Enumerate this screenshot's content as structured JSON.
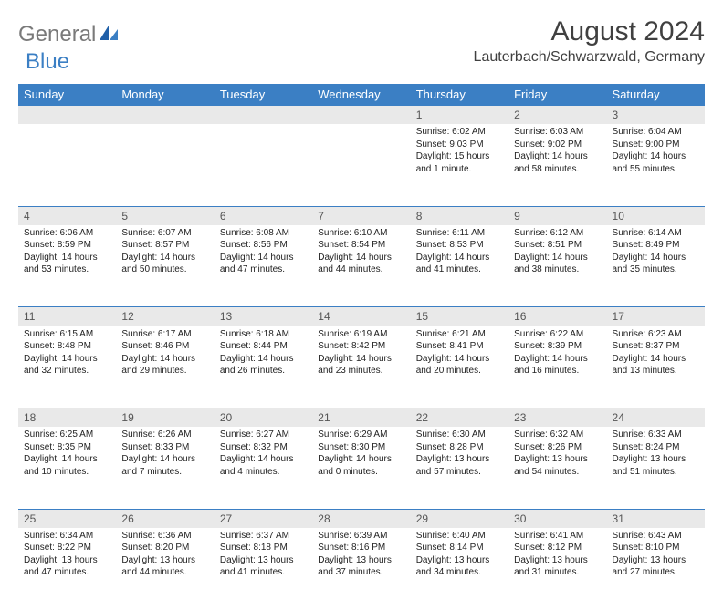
{
  "logo": {
    "gray": "General",
    "blue": "Blue"
  },
  "title": "August 2024",
  "location": "Lauterbach/Schwarzwald, Germany",
  "colors": {
    "header_bg": "#3b7fc4",
    "header_text": "#ffffff",
    "daynum_bg": "#e9e9e9",
    "border": "#3b7fc4",
    "logo_gray": "#7a7a7a",
    "logo_blue": "#3b7fc4"
  },
  "day_headers": [
    "Sunday",
    "Monday",
    "Tuesday",
    "Wednesday",
    "Thursday",
    "Friday",
    "Saturday"
  ],
  "weeks": [
    [
      null,
      null,
      null,
      null,
      {
        "n": "1",
        "sr": "Sunrise: 6:02 AM",
        "ss": "Sunset: 9:03 PM",
        "dl": "Daylight: 15 hours and 1 minute."
      },
      {
        "n": "2",
        "sr": "Sunrise: 6:03 AM",
        "ss": "Sunset: 9:02 PM",
        "dl": "Daylight: 14 hours and 58 minutes."
      },
      {
        "n": "3",
        "sr": "Sunrise: 6:04 AM",
        "ss": "Sunset: 9:00 PM",
        "dl": "Daylight: 14 hours and 55 minutes."
      }
    ],
    [
      {
        "n": "4",
        "sr": "Sunrise: 6:06 AM",
        "ss": "Sunset: 8:59 PM",
        "dl": "Daylight: 14 hours and 53 minutes."
      },
      {
        "n": "5",
        "sr": "Sunrise: 6:07 AM",
        "ss": "Sunset: 8:57 PM",
        "dl": "Daylight: 14 hours and 50 minutes."
      },
      {
        "n": "6",
        "sr": "Sunrise: 6:08 AM",
        "ss": "Sunset: 8:56 PM",
        "dl": "Daylight: 14 hours and 47 minutes."
      },
      {
        "n": "7",
        "sr": "Sunrise: 6:10 AM",
        "ss": "Sunset: 8:54 PM",
        "dl": "Daylight: 14 hours and 44 minutes."
      },
      {
        "n": "8",
        "sr": "Sunrise: 6:11 AM",
        "ss": "Sunset: 8:53 PM",
        "dl": "Daylight: 14 hours and 41 minutes."
      },
      {
        "n": "9",
        "sr": "Sunrise: 6:12 AM",
        "ss": "Sunset: 8:51 PM",
        "dl": "Daylight: 14 hours and 38 minutes."
      },
      {
        "n": "10",
        "sr": "Sunrise: 6:14 AM",
        "ss": "Sunset: 8:49 PM",
        "dl": "Daylight: 14 hours and 35 minutes."
      }
    ],
    [
      {
        "n": "11",
        "sr": "Sunrise: 6:15 AM",
        "ss": "Sunset: 8:48 PM",
        "dl": "Daylight: 14 hours and 32 minutes."
      },
      {
        "n": "12",
        "sr": "Sunrise: 6:17 AM",
        "ss": "Sunset: 8:46 PM",
        "dl": "Daylight: 14 hours and 29 minutes."
      },
      {
        "n": "13",
        "sr": "Sunrise: 6:18 AM",
        "ss": "Sunset: 8:44 PM",
        "dl": "Daylight: 14 hours and 26 minutes."
      },
      {
        "n": "14",
        "sr": "Sunrise: 6:19 AM",
        "ss": "Sunset: 8:42 PM",
        "dl": "Daylight: 14 hours and 23 minutes."
      },
      {
        "n": "15",
        "sr": "Sunrise: 6:21 AM",
        "ss": "Sunset: 8:41 PM",
        "dl": "Daylight: 14 hours and 20 minutes."
      },
      {
        "n": "16",
        "sr": "Sunrise: 6:22 AM",
        "ss": "Sunset: 8:39 PM",
        "dl": "Daylight: 14 hours and 16 minutes."
      },
      {
        "n": "17",
        "sr": "Sunrise: 6:23 AM",
        "ss": "Sunset: 8:37 PM",
        "dl": "Daylight: 14 hours and 13 minutes."
      }
    ],
    [
      {
        "n": "18",
        "sr": "Sunrise: 6:25 AM",
        "ss": "Sunset: 8:35 PM",
        "dl": "Daylight: 14 hours and 10 minutes."
      },
      {
        "n": "19",
        "sr": "Sunrise: 6:26 AM",
        "ss": "Sunset: 8:33 PM",
        "dl": "Daylight: 14 hours and 7 minutes."
      },
      {
        "n": "20",
        "sr": "Sunrise: 6:27 AM",
        "ss": "Sunset: 8:32 PM",
        "dl": "Daylight: 14 hours and 4 minutes."
      },
      {
        "n": "21",
        "sr": "Sunrise: 6:29 AM",
        "ss": "Sunset: 8:30 PM",
        "dl": "Daylight: 14 hours and 0 minutes."
      },
      {
        "n": "22",
        "sr": "Sunrise: 6:30 AM",
        "ss": "Sunset: 8:28 PM",
        "dl": "Daylight: 13 hours and 57 minutes."
      },
      {
        "n": "23",
        "sr": "Sunrise: 6:32 AM",
        "ss": "Sunset: 8:26 PM",
        "dl": "Daylight: 13 hours and 54 minutes."
      },
      {
        "n": "24",
        "sr": "Sunrise: 6:33 AM",
        "ss": "Sunset: 8:24 PM",
        "dl": "Daylight: 13 hours and 51 minutes."
      }
    ],
    [
      {
        "n": "25",
        "sr": "Sunrise: 6:34 AM",
        "ss": "Sunset: 8:22 PM",
        "dl": "Daylight: 13 hours and 47 minutes."
      },
      {
        "n": "26",
        "sr": "Sunrise: 6:36 AM",
        "ss": "Sunset: 8:20 PM",
        "dl": "Daylight: 13 hours and 44 minutes."
      },
      {
        "n": "27",
        "sr": "Sunrise: 6:37 AM",
        "ss": "Sunset: 8:18 PM",
        "dl": "Daylight: 13 hours and 41 minutes."
      },
      {
        "n": "28",
        "sr": "Sunrise: 6:39 AM",
        "ss": "Sunset: 8:16 PM",
        "dl": "Daylight: 13 hours and 37 minutes."
      },
      {
        "n": "29",
        "sr": "Sunrise: 6:40 AM",
        "ss": "Sunset: 8:14 PM",
        "dl": "Daylight: 13 hours and 34 minutes."
      },
      {
        "n": "30",
        "sr": "Sunrise: 6:41 AM",
        "ss": "Sunset: 8:12 PM",
        "dl": "Daylight: 13 hours and 31 minutes."
      },
      {
        "n": "31",
        "sr": "Sunrise: 6:43 AM",
        "ss": "Sunset: 8:10 PM",
        "dl": "Daylight: 13 hours and 27 minutes."
      }
    ]
  ]
}
